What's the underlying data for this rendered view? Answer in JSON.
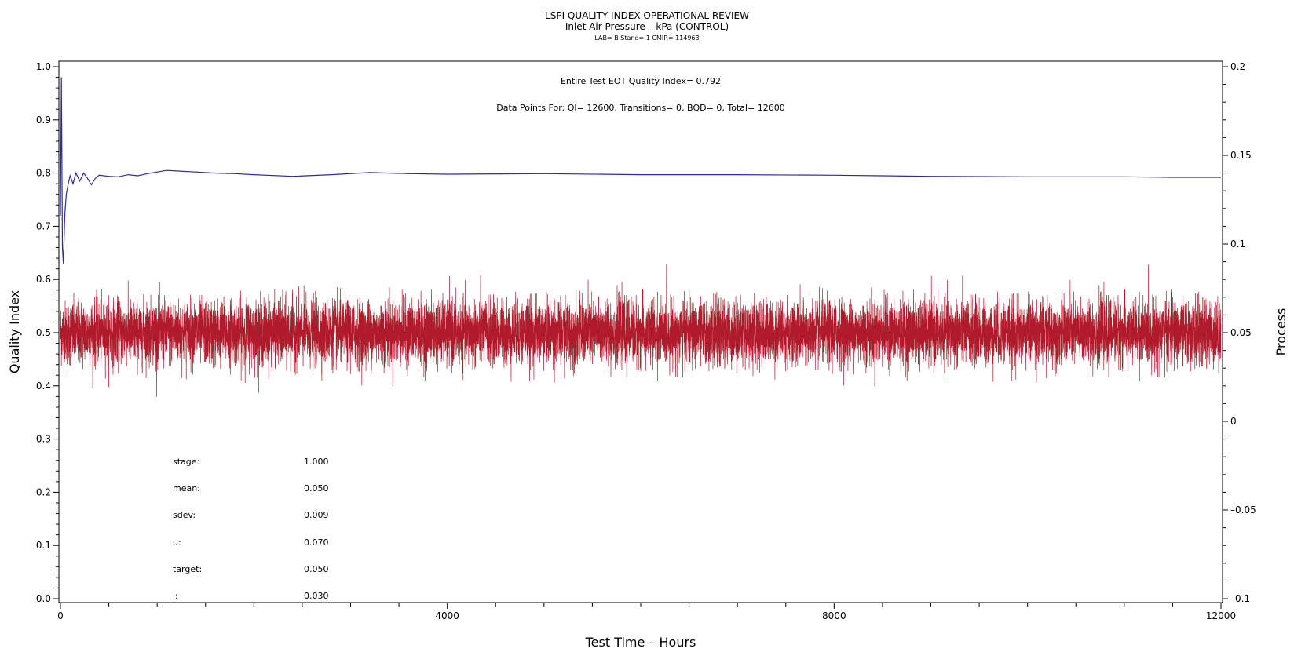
{
  "chart_data": {
    "type": "line",
    "title": "LSPI QUALITY INDEX OPERATIONAL REVIEW",
    "subtitle": "Inlet Air Pressure – kPa (CONTROL)",
    "subtitle2": "LAB= B Stand= 1 CMIR= 114963",
    "xlabel": "Test Time – Hours",
    "ylabel_left": "Quality Index",
    "ylabel_right": "Process",
    "xlim": [
      0,
      12000
    ],
    "ylim_left": [
      0.0,
      1.0
    ],
    "ylim_right": [
      -0.1,
      0.2
    ],
    "x_ticks": [
      "0",
      "4000",
      "8000",
      "12000"
    ],
    "y_left_ticks": [
      "0.0",
      "0.1",
      "0.2",
      "0.3",
      "0.4",
      "0.5",
      "0.6",
      "0.7",
      "0.8",
      "0.9",
      "1.0"
    ],
    "y_right_ticks": [
      "–0.1",
      "–0.05",
      "0",
      "0.05",
      "0.1",
      "0.15",
      "0.2"
    ],
    "annotations": {
      "line1": "Entire Test EOT Quality Index=   0.792",
      "line2": "Data Points For: QI= 12600, Transitions=      0, BQD=      0, Total= 12600"
    },
    "stats": [
      {
        "label": "stage:",
        "value": "1.000"
      },
      {
        "label": "mean:",
        "value": "0.050"
      },
      {
        "label": "sdev:",
        "value": "0.009"
      },
      {
        "label": "u:",
        "value": "0.070"
      },
      {
        "label": "target:",
        "value": "0.050"
      },
      {
        "label": "l:",
        "value": "0.030"
      }
    ],
    "series": [
      {
        "axis": "left",
        "color": "#2b2ba8",
        "x": [
          0,
          10,
          20,
          30,
          45,
          60,
          80,
          100,
          130,
          160,
          200,
          240,
          280,
          320,
          360,
          400,
          500,
          600,
          700,
          800,
          900,
          1000,
          1100,
          1200,
          1400,
          1600,
          1800,
          2000,
          2400,
          2800,
          3200,
          3600,
          4000,
          5000,
          6000,
          7000,
          8000,
          8500,
          9000,
          10000,
          11000,
          11500,
          12000
        ],
        "values": [
          0.72,
          0.98,
          0.66,
          0.63,
          0.72,
          0.76,
          0.78,
          0.795,
          0.78,
          0.8,
          0.785,
          0.8,
          0.79,
          0.778,
          0.79,
          0.796,
          0.794,
          0.793,
          0.797,
          0.795,
          0.799,
          0.802,
          0.805,
          0.804,
          0.802,
          0.8,
          0.799,
          0.797,
          0.794,
          0.797,
          0.801,
          0.799,
          0.798,
          0.799,
          0.797,
          0.797,
          0.796,
          0.795,
          0.794,
          0.793,
          0.793,
          0.792,
          0.792
        ]
      },
      {
        "axis": "right",
        "color": "#b01a2a",
        "mean": 0.05,
        "sdev": 0.009,
        "points": 12600
      }
    ]
  }
}
